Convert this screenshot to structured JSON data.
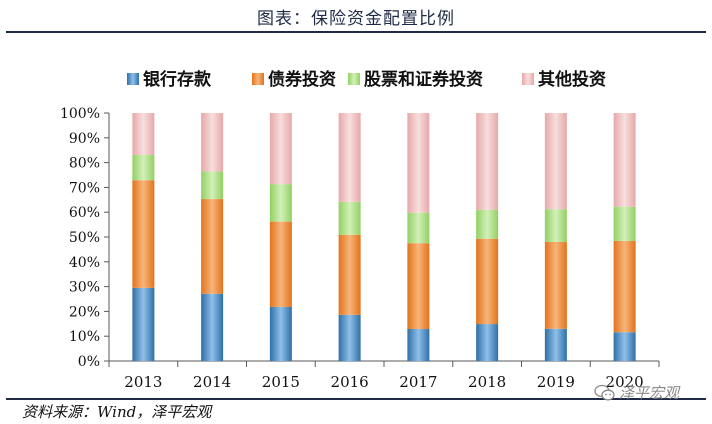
{
  "page": {
    "title": "图表：保险资金配置比例",
    "source": "资料来源：Wind，泽平宏观",
    "watermark": "泽平宏观"
  },
  "colors": {
    "rule": "#1f2a44",
    "axis": "#595959",
    "text": "#111111",
    "series": [
      "#4f8fc6",
      "#f28f3b",
      "#a9dc82",
      "#efb8b8"
    ]
  },
  "chart_data": {
    "type": "bar",
    "stacked": true,
    "categories": [
      "2013",
      "2014",
      "2015",
      "2016",
      "2017",
      "2018",
      "2019",
      "2020"
    ],
    "series": [
      {
        "name": "银行存款",
        "values": [
          29.5,
          27.1,
          21.8,
          18.6,
          12.9,
          14.9,
          13.0,
          11.6
        ]
      },
      {
        "name": "债券投资",
        "values": [
          43.4,
          38.2,
          34.4,
          32.3,
          34.6,
          34.4,
          35.0,
          36.8
        ]
      },
      {
        "name": "股票和证券投资",
        "values": [
          10.2,
          11.1,
          15.1,
          13.3,
          12.3,
          11.7,
          13.2,
          13.8
        ]
      },
      {
        "name": "其他投资",
        "values": [
          16.9,
          23.6,
          28.7,
          35.8,
          40.2,
          39.0,
          38.8,
          37.8
        ]
      }
    ],
    "ylim": [
      0,
      100
    ],
    "yticks": [
      "0%",
      "10%",
      "20%",
      "30%",
      "40%",
      "50%",
      "60%",
      "70%",
      "80%",
      "90%",
      "100%"
    ],
    "legend_position": "top",
    "grid": false
  }
}
